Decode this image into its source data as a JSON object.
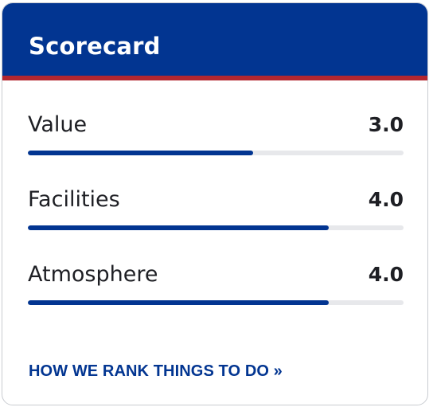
{
  "colors": {
    "header_background": "#023591",
    "header_accent": "#b3272f",
    "bar_fill": "#023591",
    "bar_track": "#e7e8eb",
    "text": "#1e1f24"
  },
  "scorecard": {
    "title": "Scorecard",
    "max_score": 5,
    "items": [
      {
        "label": "Value",
        "score": "3.0",
        "fraction": 0.6
      },
      {
        "label": "Facilities",
        "score": "4.0",
        "fraction": 0.8
      },
      {
        "label": "Atmosphere",
        "score": "4.0",
        "fraction": 0.8
      }
    ],
    "footer_link": "HOW WE RANK THINGS TO DO »"
  }
}
